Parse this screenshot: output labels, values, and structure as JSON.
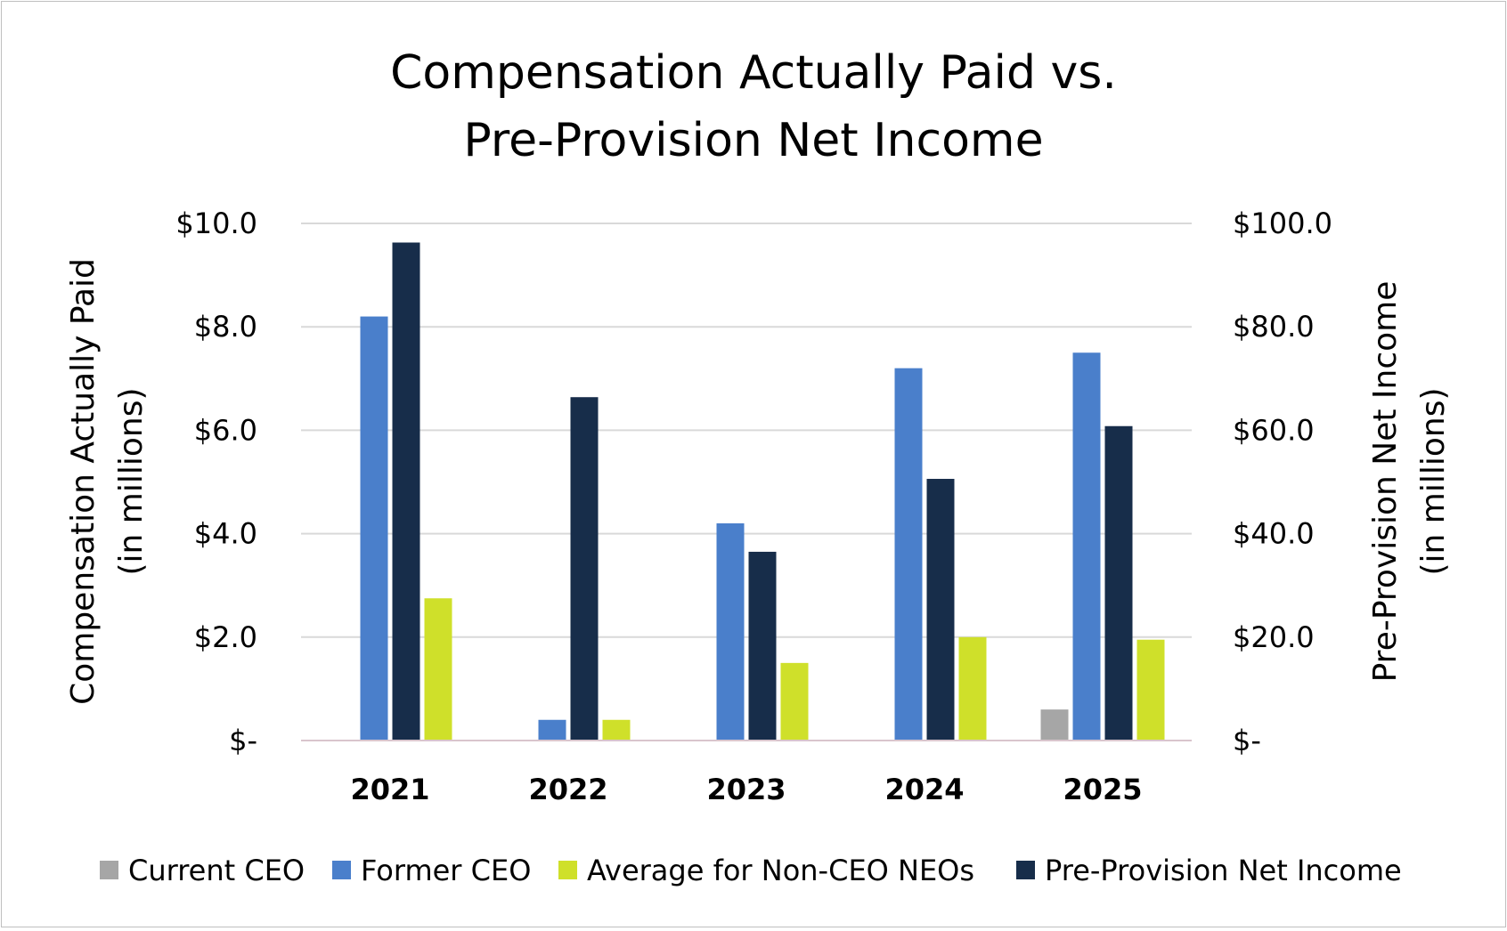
{
  "chart_data": {
    "type": "bar",
    "title_lines": [
      "Compensation Actually Paid vs.",
      "Pre-Provision Net Income"
    ],
    "categories": [
      "2021",
      "2022",
      "2023",
      "2024",
      "2025"
    ],
    "y_left": {
      "label_lines": [
        "Compensation Actually Paid",
        "(in millions)"
      ],
      "lim": [
        0,
        10
      ],
      "ticks": [
        0,
        2,
        4,
        6,
        8,
        10
      ],
      "tick_labels": [
        "$-",
        "$2.0",
        "$4.0",
        "$6.0",
        "$8.0",
        "$10.0"
      ]
    },
    "y_right": {
      "label_lines": [
        "Pre-Provision Net Income",
        "(in millions)"
      ],
      "lim": [
        0,
        100
      ],
      "ticks": [
        0,
        20,
        40,
        60,
        80,
        100
      ],
      "tick_labels": [
        "$-",
        "$20.0",
        "$40.0",
        "$60.0",
        "$80.0",
        "$100.0"
      ]
    },
    "series": [
      {
        "name": "Current CEO",
        "axis": "left",
        "color": "#a6a6a6",
        "values": [
          null,
          null,
          null,
          null,
          0.6
        ]
      },
      {
        "name": "Former CEO",
        "axis": "left",
        "color": "#4a7fcb",
        "values": [
          8.2,
          0.4,
          4.2,
          7.2,
          7.5
        ]
      },
      {
        "name": "Pre-Provision Net Income",
        "axis": "right",
        "color": "#172d4a",
        "values": [
          96.3,
          66.4,
          36.5,
          50.6,
          60.8
        ]
      },
      {
        "name": "Average for Non-CEO NEOs",
        "axis": "left",
        "color": "#cfe02a",
        "values": [
          2.75,
          0.4,
          1.5,
          2.0,
          1.95
        ]
      }
    ],
    "legend": {
      "position": "bottom",
      "order": [
        "Current CEO",
        "Former CEO",
        "Average for Non-CEO NEOs",
        "Pre-Provision Net Income"
      ]
    },
    "grid": true,
    "colors": {
      "grid": "#d9d9d9",
      "baseline": "#d9c5cd"
    }
  }
}
